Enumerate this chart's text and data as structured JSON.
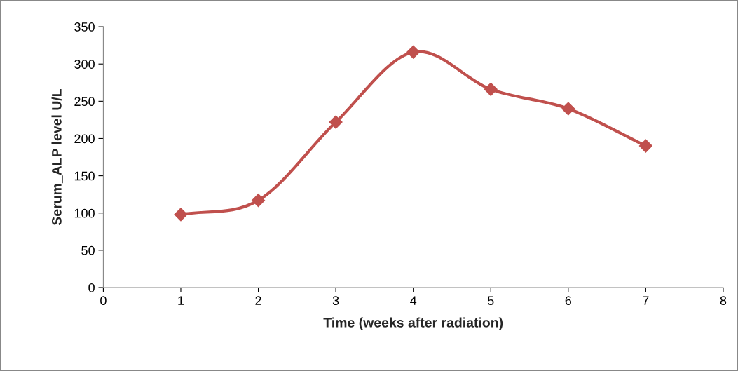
{
  "chart_data": {
    "type": "line",
    "xlabel": "Time (weeks after radiation)",
    "ylabel": "Serum_ALP level U/L",
    "x": [
      1,
      2,
      3,
      4,
      5,
      6,
      7
    ],
    "series": [
      {
        "color": "#c0504d",
        "values": [
          98,
          117,
          222,
          316,
          266,
          240,
          190
        ]
      }
    ],
    "xlim": [
      0,
      8
    ],
    "xticks": [
      0,
      1,
      2,
      3,
      4,
      5,
      6,
      7,
      8
    ],
    "ylim": [
      0,
      350
    ],
    "yticks": [
      0,
      50,
      100,
      150,
      200,
      250,
      300,
      350
    ],
    "marker": "diamond",
    "line_style": "solid",
    "grid": false,
    "legend": false
  }
}
